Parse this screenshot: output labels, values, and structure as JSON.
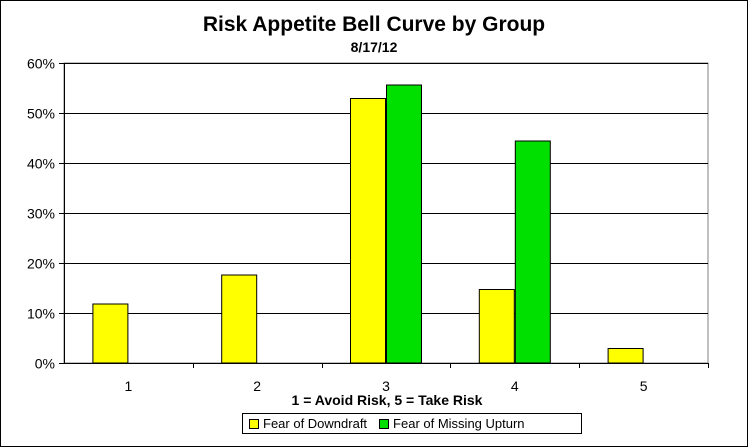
{
  "colors": {
    "series_1": "#ffff00",
    "series_2": "#00e000",
    "grid": "#000000",
    "plot_bg": "#ffffff"
  },
  "chart_data": {
    "type": "bar",
    "title": "Risk Appetite Bell Curve by Group",
    "subtitle": "8/17/12",
    "xlabel": "1 = Avoid Risk, 5 = Take Risk",
    "ylabel": "",
    "categories": [
      "1",
      "2",
      "3",
      "4",
      "5"
    ],
    "ylim": [
      0,
      60
    ],
    "yticks": [
      "0%",
      "10%",
      "20%",
      "30%",
      "40%",
      "50%",
      "60%"
    ],
    "grid": true,
    "legend_position": "bottom",
    "series": [
      {
        "name": "Fear of Downdraft",
        "values": [
          11.8,
          17.6,
          52.9,
          14.7,
          2.9
        ]
      },
      {
        "name": "Fear of Missing Upturn",
        "values": [
          0,
          0,
          55.6,
          44.4,
          0
        ]
      }
    ]
  }
}
